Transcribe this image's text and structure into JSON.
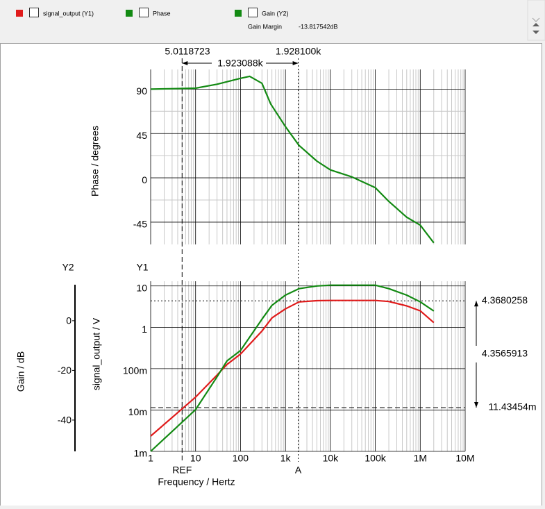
{
  "gain_margin": {
    "label": "Gain Margin",
    "value": "-13.817542dB"
  },
  "cursors": {
    "ref": {
      "name": "REF",
      "x": 5.0118723,
      "y": {
        "value": 0.01143454,
        "label": "11.43454m"
      }
    },
    "a": {
      "name": "A",
      "x": {
        "value": 1928.1,
        "label": "1.928100k"
      },
      "y": 4.3680258
    },
    "dx": {
      "value": 1923.088,
      "label": "1.923088k"
    },
    "dy": 4.3565913
  },
  "chart_data": [
    {
      "type": "line",
      "xscale": "log",
      "xlim": [
        1,
        10000000
      ],
      "ylim": [
        -67.6,
        110
      ],
      "yticks": [
        90,
        45,
        0,
        -45
      ],
      "ylabel": "Phase / degrees",
      "grid": true,
      "x": [
        1,
        10,
        30,
        100,
        160,
        300,
        470,
        1000,
        2000,
        5000,
        10000,
        30000,
        100000,
        200000,
        500000,
        1000000,
        2000000
      ],
      "series": [
        {
          "name": "Phase",
          "color": "#138a13",
          "values": [
            90,
            91,
            95,
            101,
            103,
            96,
            75,
            52,
            33,
            17,
            8,
            1,
            -10,
            -24,
            -40,
            -48,
            -66
          ]
        }
      ]
    },
    {
      "type": "line",
      "xscale": "log",
      "xlim": [
        1,
        10000000
      ],
      "xticks": [
        1,
        10,
        100,
        {
          "value": 1000,
          "label": "1k"
        },
        {
          "value": 10000,
          "label": "10k"
        },
        {
          "value": 100000,
          "label": "100k"
        },
        {
          "value": 1000000,
          "label": "1M"
        },
        {
          "value": 10000000,
          "label": "10M"
        }
      ],
      "xlabel": "Frequency / Hertz",
      "yscale": "log",
      "ylim": [
        0.001,
        13
      ],
      "yticks": [
        10,
        1,
        {
          "value": 0.1,
          "label": "100m"
        },
        {
          "value": 0.01,
          "label": "10m"
        },
        {
          "value": 0.001,
          "label": "1m"
        }
      ],
      "ylabel": "signal_output / V",
      "yaxis_name": "Y1",
      "y2lim": [
        -52.6,
        15.9
      ],
      "y2ticks": [
        0,
        -20,
        -40
      ],
      "y2label": "Gain / dB",
      "y2axis_name": "Y2",
      "grid": true,
      "x": [
        1,
        10,
        30,
        50,
        100,
        300,
        500,
        1000,
        2000,
        5000,
        10000,
        100000,
        200000,
        500000,
        1000000,
        2000000
      ],
      "series": [
        {
          "name": "signal_output (Y1)",
          "color": "#e01b1b",
          "values": [
            0.00234,
            0.0205,
            0.07,
            0.126,
            0.225,
            0.81,
            1.69,
            2.79,
            4.1,
            4.4,
            4.45,
            4.45,
            4.2,
            3.3,
            2.5,
            1.3
          ]
        },
        {
          "name": "Gain (Y2)",
          "color": "#138a13",
          "axis": "y2",
          "values": [
            -52.6,
            -35.8,
            -22.6,
            -16.2,
            -12,
            0.6,
            6.2,
            10.3,
            12.9,
            14,
            14.3,
            14.3,
            12.9,
            10.3,
            7.6,
            3.9
          ]
        }
      ]
    }
  ]
}
